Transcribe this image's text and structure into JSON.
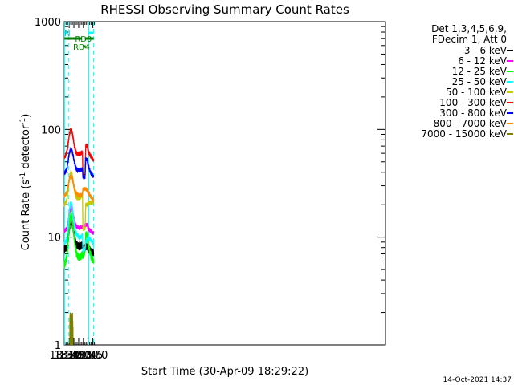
{
  "chart_data": {
    "type": "line",
    "title": "RHESSI Observing Summary Count Rates",
    "xlabel": "Start Time (30-Apr-09 18:29:22)",
    "ylabel_main": "Count Rate (s",
    "ylabel_sup1": "-1",
    "ylabel_mid": " detector",
    "ylabel_sup2": "-1",
    "ylabel_end": ")",
    "y_scale": "log",
    "ylim": [
      1,
      1000
    ],
    "xlim_min": [
      1109.4,
      2126
    ],
    "x_ticks": [
      {
        "label": "18:30",
        "m": 1110
      },
      {
        "label": "18:45",
        "m": 1125
      },
      {
        "label": "19:00",
        "m": 1140
      },
      {
        "label": "19:15",
        "m": 1155
      },
      {
        "label": "19:30",
        "m": 1170
      },
      {
        "label": "19:45",
        "m": 1185
      },
      {
        "label": "20:00",
        "m": 1200
      }
    ],
    "y_ticks": [
      {
        "label": "1",
        "v": 1
      },
      {
        "label": "10",
        "v": 10
      },
      {
        "label": "100",
        "v": 100
      },
      {
        "label": "1000",
        "v": 1000
      }
    ],
    "legend_header": [
      "Det 1,3,4,5,6,9,",
      "FDecim 1, Att 0"
    ],
    "series": [
      {
        "name": "3 - 6 keV",
        "color": "#000000",
        "values": [
          [
            1110,
            7.8
          ],
          [
            1118,
            8
          ],
          [
            1122,
            10
          ],
          [
            1126,
            12.5
          ],
          [
            1130,
            14.5
          ],
          [
            1134,
            14
          ],
          [
            1138,
            12
          ],
          [
            1142,
            10
          ],
          [
            1146,
            8.7
          ],
          [
            1150,
            8.5
          ],
          [
            1156,
            8.2
          ],
          [
            1162,
            8.3
          ],
          [
            1167,
            8.5
          ],
          [
            1168.5,
            7.8
          ],
          [
            1175,
            8
          ],
          [
            1177.5,
            8.2
          ],
          [
            1182,
            8.2
          ],
          [
            1186,
            7.8
          ],
          [
            1192,
            7.5
          ],
          [
            1198,
            7.3
          ],
          [
            1202,
            7.2
          ]
        ]
      },
      {
        "name": "6 - 12 keV",
        "color": "#ff00ff",
        "values": [
          [
            1110,
            11.5
          ],
          [
            1118,
            12
          ],
          [
            1122,
            14
          ],
          [
            1126,
            17
          ],
          [
            1130,
            19
          ],
          [
            1134,
            18.5
          ],
          [
            1138,
            16
          ],
          [
            1142,
            14
          ],
          [
            1146,
            12.8
          ],
          [
            1150,
            12.5
          ],
          [
            1156,
            12.2
          ],
          [
            1162,
            12.3
          ],
          [
            1167,
            12.5
          ],
          [
            1168.5,
            12.5
          ],
          [
            1175,
            12.8
          ],
          [
            1177.5,
            13
          ],
          [
            1182,
            13
          ],
          [
            1186,
            12
          ],
          [
            1192,
            11.5
          ],
          [
            1198,
            11
          ],
          [
            1202,
            11
          ]
        ]
      },
      {
        "name": "12 - 25 keV",
        "color": "#00ff00",
        "values": [
          [
            1110,
            5.5
          ],
          [
            1118,
            6.5
          ],
          [
            1122,
            9.5
          ],
          [
            1126,
            13
          ],
          [
            1130,
            16
          ],
          [
            1134,
            15
          ],
          [
            1138,
            12
          ],
          [
            1142,
            9.5
          ],
          [
            1146,
            7.5
          ],
          [
            1150,
            6.8
          ],
          [
            1156,
            6.5
          ],
          [
            1162,
            6.6
          ],
          [
            1167,
            7
          ],
          [
            1168.5,
            6.8
          ],
          [
            1175,
            7.5
          ],
          [
            1177.5,
            10.5
          ],
          [
            1182,
            10.5
          ],
          [
            1186,
            8.5
          ],
          [
            1192,
            7
          ],
          [
            1198,
            6.2
          ],
          [
            1202,
            6
          ]
        ]
      },
      {
        "name": "25 - 50 keV",
        "color": "#00ffff",
        "values": [
          [
            1110,
            8.7
          ],
          [
            1118,
            9.5
          ],
          [
            1122,
            13
          ],
          [
            1126,
            18
          ],
          [
            1130,
            21
          ],
          [
            1134,
            20
          ],
          [
            1138,
            16
          ],
          [
            1142,
            13
          ],
          [
            1146,
            11
          ],
          [
            1150,
            10.5
          ],
          [
            1156,
            10
          ],
          [
            1162,
            10
          ],
          [
            1167,
            10.5
          ],
          [
            1168.5,
            7.5
          ],
          [
            1175,
            7.8
          ],
          [
            1177.5,
            9
          ],
          [
            1182,
            9.5
          ],
          [
            1186,
            10
          ],
          [
            1192,
            9.5
          ],
          [
            1198,
            9
          ],
          [
            1202,
            8.7
          ]
        ]
      },
      {
        "name": "50 - 100 keV",
        "color": "#c8c800",
        "values": [
          [
            1110,
            20
          ],
          [
            1118,
            22
          ],
          [
            1122,
            28
          ],
          [
            1126,
            35
          ],
          [
            1130,
            40
          ],
          [
            1134,
            38
          ],
          [
            1138,
            32
          ],
          [
            1142,
            27
          ],
          [
            1146,
            24
          ],
          [
            1150,
            23
          ],
          [
            1156,
            23
          ],
          [
            1162,
            23.5
          ],
          [
            1167,
            25
          ],
          [
            1168.5,
            12
          ],
          [
            1175,
            12
          ],
          [
            1177.5,
            20
          ],
          [
            1182,
            20
          ],
          [
            1186,
            21
          ],
          [
            1192,
            21
          ],
          [
            1198,
            21
          ],
          [
            1202,
            21
          ]
        ]
      },
      {
        "name": "100 - 300 keV",
        "color": "#ff0000",
        "values": [
          [
            1110,
            55
          ],
          [
            1118,
            62
          ],
          [
            1122,
            75
          ],
          [
            1126,
            90
          ],
          [
            1130,
            100
          ],
          [
            1134,
            96
          ],
          [
            1138,
            82
          ],
          [
            1142,
            70
          ],
          [
            1146,
            62
          ],
          [
            1150,
            59
          ],
          [
            1156,
            59
          ],
          [
            1162,
            60
          ],
          [
            1167,
            62
          ],
          [
            1168.5,
            37
          ],
          [
            1175,
            37
          ],
          [
            1177.5,
            72
          ],
          [
            1182,
            70
          ],
          [
            1186,
            62
          ],
          [
            1192,
            57
          ],
          [
            1198,
            54
          ],
          [
            1202,
            51
          ]
        ]
      },
      {
        "name": "300 - 800 keV",
        "color": "#0000ff",
        "values": [
          [
            1110,
            39
          ],
          [
            1118,
            43
          ],
          [
            1122,
            52
          ],
          [
            1126,
            61
          ],
          [
            1130,
            66
          ],
          [
            1134,
            64
          ],
          [
            1138,
            56
          ],
          [
            1142,
            49
          ],
          [
            1146,
            44
          ],
          [
            1150,
            42
          ],
          [
            1156,
            42
          ],
          [
            1162,
            42
          ],
          [
            1167,
            43
          ],
          [
            1168.5,
            36
          ],
          [
            1175,
            36
          ],
          [
            1177.5,
            53
          ],
          [
            1182,
            52
          ],
          [
            1186,
            45
          ],
          [
            1192,
            40
          ],
          [
            1198,
            38
          ],
          [
            1202,
            36
          ]
        ]
      },
      {
        "name": "800 - 7000 keV",
        "color": "#ff8c00",
        "values": [
          [
            1110,
            24
          ],
          [
            1118,
            26
          ],
          [
            1122,
            30
          ],
          [
            1126,
            35
          ],
          [
            1130,
            37
          ],
          [
            1134,
            36
          ],
          [
            1138,
            32
          ],
          [
            1142,
            28
          ],
          [
            1146,
            26
          ],
          [
            1150,
            25
          ],
          [
            1156,
            24.5
          ],
          [
            1162,
            24.5
          ],
          [
            1167,
            25
          ],
          [
            1168.5,
            28
          ],
          [
            1175,
            28
          ],
          [
            1177.5,
            28
          ],
          [
            1182,
            27
          ],
          [
            1186,
            26
          ],
          [
            1192,
            24
          ],
          [
            1198,
            23
          ],
          [
            1202,
            22
          ]
        ]
      },
      {
        "name": "7000 - 15000 keV",
        "color": "#808000",
        "values": [
          [
            1127,
            1
          ],
          [
            1127,
            2
          ],
          [
            1128,
            1.6
          ],
          [
            1129,
            2
          ],
          [
            1130,
            1.4
          ],
          [
            1131,
            2
          ],
          [
            1132,
            1.5
          ],
          [
            1133,
            2
          ],
          [
            1134,
            1.3
          ],
          [
            1135,
            2
          ],
          [
            1136,
            1.6
          ],
          [
            1137,
            2
          ]
        ]
      }
    ],
    "annotations": {
      "n_label": "N",
      "rd0_label": "RD0",
      "rd4_label": "RD4"
    },
    "bars": [
      {
        "name": "N",
        "color": "#00ffff",
        "segments": [
          [
            1110,
            1117
          ],
          [
            1187,
            1202.5
          ]
        ]
      },
      {
        "name": "RD0",
        "color": "#008000",
        "segments": [
          [
            1110,
            1165.5
          ],
          [
            1174.5,
            1202.5
          ]
        ]
      },
      {
        "name": "RD4",
        "color": "#008000",
        "segments": [
          [
            1168,
            1177.5
          ]
        ]
      }
    ],
    "vertical_markers": [
      {
        "m": 1110.3,
        "color": "#00ffff",
        "style": "solid"
      },
      {
        "m": 1124.0,
        "color": "#00ffff",
        "style": "dashed"
      },
      {
        "m": 1186.6,
        "color": "#00ffff",
        "style": "solid"
      },
      {
        "m": 1202.5,
        "color": "#00ffff",
        "style": "dashed"
      }
    ],
    "footer": "14-Oct-2021 14:37"
  }
}
